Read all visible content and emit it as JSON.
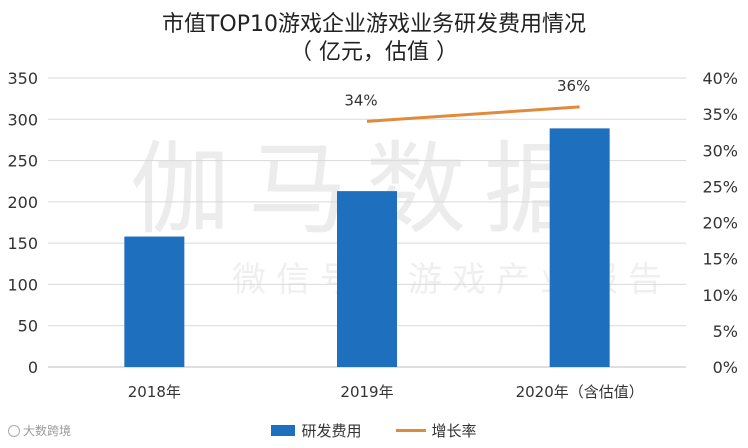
{
  "title_line1": "市值TOP10游戏企业游戏业务研发费用情况",
  "title_line2": "（ 亿元，估值 ）",
  "watermark": {
    "big": "伽马数据",
    "small": "微信号：游戏产业报告"
  },
  "corner_logo": "大数跨境",
  "colors": {
    "bar": "#1f6fbf",
    "line": "#e08b3c",
    "grid": "#d9d9d9",
    "axis": "#bfbfbf",
    "text": "#333333"
  },
  "chart_data": {
    "type": "bar",
    "categories": [
      "2018年",
      "2019年",
      "2020年（含估值）"
    ],
    "series": [
      {
        "name": "研发费用",
        "type": "bar",
        "axis": "left",
        "values": [
          158,
          213,
          289
        ]
      },
      {
        "name": "增长率",
        "type": "line",
        "axis": "right",
        "values": [
          null,
          34,
          36
        ],
        "labels": [
          "",
          "34%",
          "36%"
        ]
      }
    ],
    "y_left": {
      "min": 0,
      "max": 350,
      "step": 50,
      "ticks": [
        "0",
        "50",
        "100",
        "150",
        "200",
        "250",
        "300",
        "350"
      ]
    },
    "y_right": {
      "min": 0,
      "max": 40,
      "step": 5,
      "ticks": [
        "0%",
        "5%",
        "10%",
        "15%",
        "20%",
        "25%",
        "30%",
        "35%",
        "40%"
      ]
    },
    "grid": true,
    "legend": "bottom"
  }
}
